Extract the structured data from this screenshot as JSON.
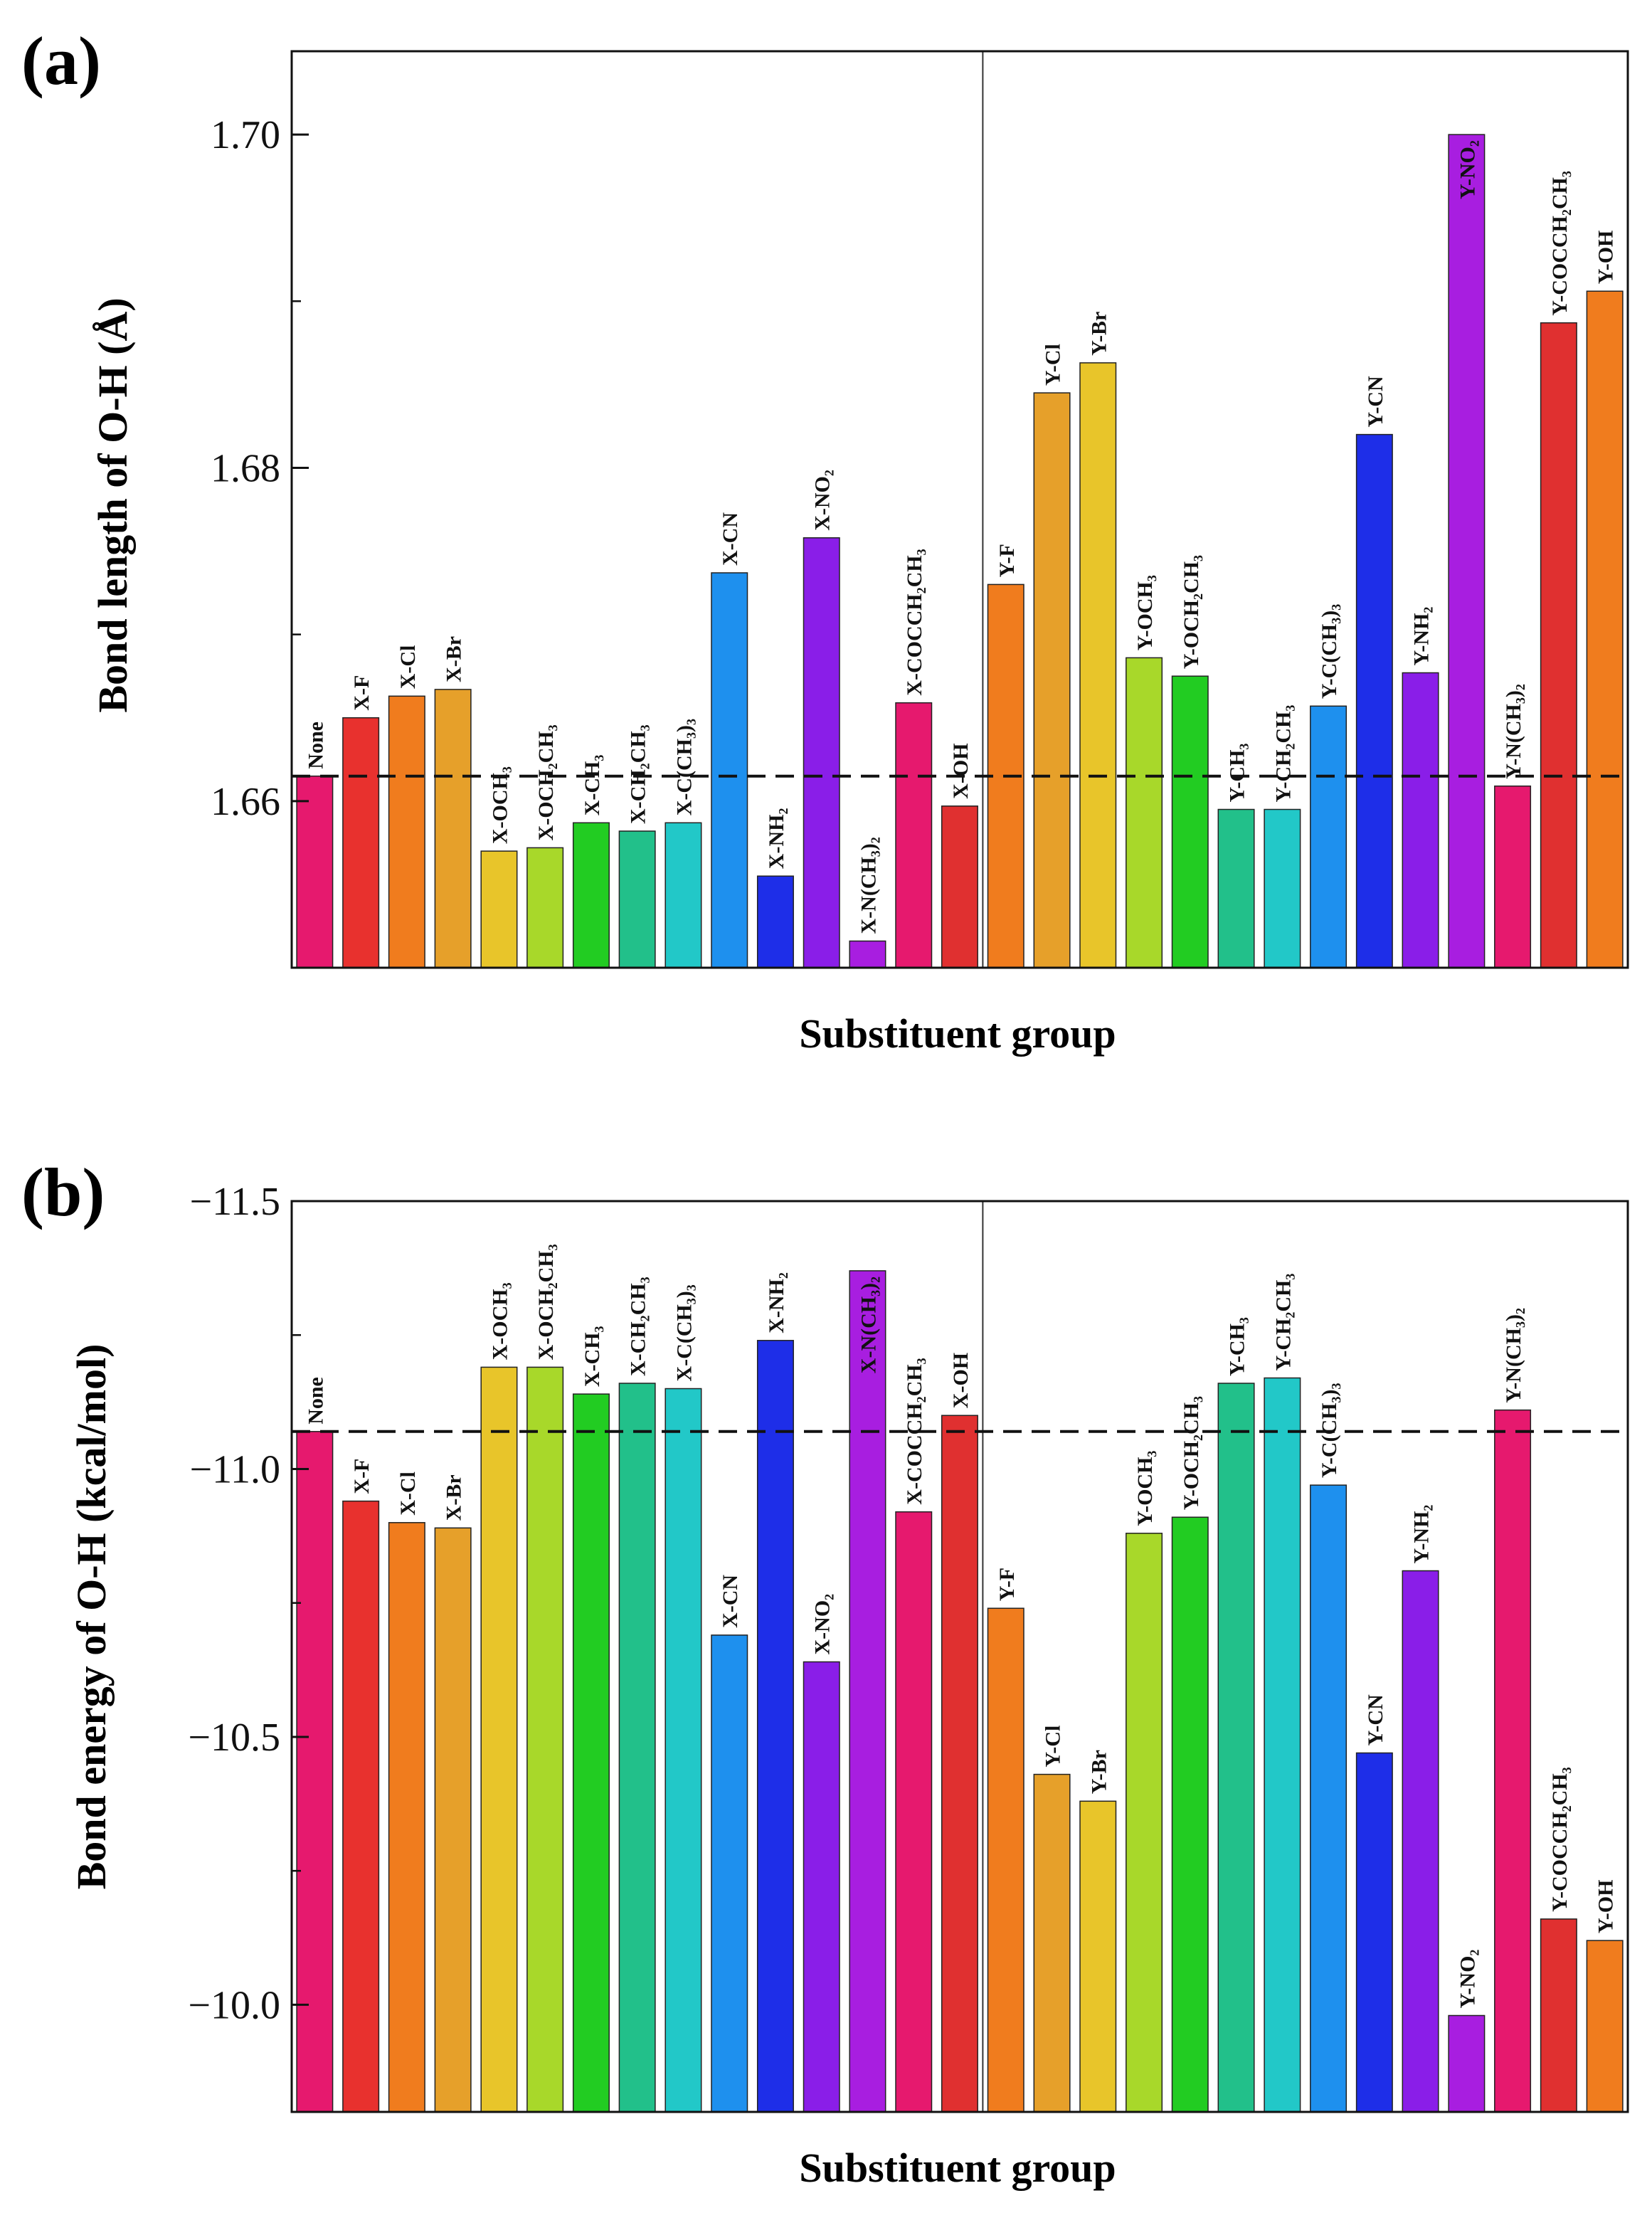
{
  "chart_data": [
    {
      "type": "bar",
      "panel_label": "(a)",
      "title": "",
      "xlabel": "Substituent group",
      "ylabel": "Bond length of O-H (Å)",
      "ylim": [
        1.65,
        1.705
      ],
      "yticks": [
        1.66,
        1.68,
        1.7
      ],
      "ytick_labels": [
        "1.66",
        "1.68",
        "1.70"
      ],
      "reference_line": 1.6615,
      "group_divider_after_index": 15,
      "grid": false,
      "categories": [
        "None",
        "X-F",
        "X-Cl",
        "X-Br",
        "X-OCH3",
        "X-OCH2CH3",
        "X-CH3",
        "X-CH2CH3",
        "X-C(CH3)3",
        "X-CN",
        "X-NH2",
        "X-NO2",
        "X-N(CH3)2",
        "X-COCCH2CH3",
        "X-OH",
        "Y-F",
        "Y-Cl",
        "Y-Br",
        "Y-OCH3",
        "Y-OCH2CH3",
        "Y-CH3",
        "Y-CH2CH3",
        "Y-C(CH3)3",
        "Y-CN",
        "Y-NH2",
        "Y-NO2",
        "Y-N(CH3)2",
        "Y-COCCH2CH3",
        "Y-OH"
      ],
      "values": [
        1.6615,
        1.665,
        1.6663,
        1.6667,
        1.657,
        1.6572,
        1.6587,
        1.6582,
        1.6587,
        1.6737,
        1.6555,
        1.6758,
        1.6516,
        1.6659,
        1.6597,
        1.673,
        1.6845,
        1.6863,
        1.6686,
        1.6675,
        1.6595,
        1.6595,
        1.6657,
        1.682,
        1.6677,
        1.7,
        1.6609,
        1.6887,
        1.6906
      ],
      "colors": [
        "#e6196e",
        "#e8312e",
        "#f07c1e",
        "#e6a02a",
        "#e8c52a",
        "#a8d82a",
        "#22cc22",
        "#22c08a",
        "#22c8c8",
        "#1e90ee",
        "#1e2ee8",
        "#8a1ee8",
        "#a81ee0",
        "#e6196e",
        "#e03030",
        "#f07c1e",
        "#e6a02a",
        "#e8c52a",
        "#a8d82a",
        "#22cc22",
        "#22c08a",
        "#22c8c8",
        "#1e90ee",
        "#1e2ee8",
        "#8a1ee8",
        "#a81ee0",
        "#e6196e",
        "#e03030",
        "#f07c1e"
      ],
      "bar_labels": [
        "None",
        "X-F",
        "X-Cl",
        "X-Br",
        "X-OCH₃",
        "X-OCH₂CH₃",
        "X-CH₃",
        "X-CH₂CH₃",
        "X-C(CH₃)₃",
        "X-CN",
        "X-NH₂",
        "X-NO₂",
        "X-N(CH₃)₂",
        "X-COCCH₂CH₃",
        "X-OH",
        "Y-F",
        "Y-Cl",
        "Y-Br",
        "Y-OCH₃",
        "Y-OCH₂CH₃",
        "Y-CH₃",
        "Y-CH₂CH₃",
        "Y-C(CH₃)₃",
        "Y-CN",
        "Y-NH₂",
        "Y-NO₂",
        "Y-N(CH₃)₂",
        "Y-COCCH₂CH₃",
        "Y-OH"
      ],
      "label_inside": [
        false,
        false,
        false,
        false,
        false,
        false,
        false,
        false,
        false,
        false,
        false,
        false,
        false,
        false,
        false,
        false,
        false,
        false,
        false,
        false,
        false,
        false,
        false,
        false,
        false,
        true,
        false,
        false,
        false
      ]
    },
    {
      "type": "bar",
      "panel_label": "(b)",
      "title": "",
      "xlabel": "Substituent group",
      "ylabel": "Bond energy of O-H (kcal/mol)",
      "ylim": [
        -11.5,
        -9.8
      ],
      "axis_inverted": true,
      "yticks": [
        -11.5,
        -11.0,
        -10.5,
        -10.0
      ],
      "ytick_labels": [
        "−11.5",
        "−11.0",
        "−10.5",
        "−10.0"
      ],
      "reference_line": -11.07,
      "group_divider_after_index": 15,
      "grid": false,
      "categories": [
        "None",
        "X-F",
        "X-Cl",
        "X-Br",
        "X-OCH3",
        "X-OCH2CH3",
        "X-CH3",
        "X-CH2CH3",
        "X-C(CH3)3",
        "X-CN",
        "X-NH2",
        "X-NO2",
        "X-N(CH3)2",
        "X-COCCH2CH3",
        "X-OH",
        "Y-F",
        "Y-Cl",
        "Y-Br",
        "Y-OCH3",
        "Y-OCH2CH3",
        "Y-CH3",
        "Y-CH2CH3",
        "Y-C(CH3)3",
        "Y-CN",
        "Y-NH2",
        "Y-NO2",
        "Y-N(CH3)2",
        "Y-COCCH2CH3",
        "Y-OH"
      ],
      "values": [
        -11.07,
        -10.94,
        -10.9,
        -10.89,
        -11.19,
        -11.19,
        -11.14,
        -11.16,
        -11.15,
        -10.69,
        -11.24,
        -10.64,
        -11.37,
        -10.92,
        -11.1,
        -10.74,
        -10.43,
        -10.38,
        -10.88,
        -10.91,
        -11.16,
        -11.17,
        -10.97,
        -10.47,
        -10.81,
        -9.98,
        -11.11,
        -10.16,
        -10.12
      ],
      "colors": [
        "#e6196e",
        "#e8312e",
        "#f07c1e",
        "#e6a02a",
        "#e8c52a",
        "#a8d82a",
        "#22cc22",
        "#22c08a",
        "#22c8c8",
        "#1e90ee",
        "#1e2ee8",
        "#8a1ee8",
        "#a81ee0",
        "#e6196e",
        "#e03030",
        "#f07c1e",
        "#e6a02a",
        "#e8c52a",
        "#a8d82a",
        "#22cc22",
        "#22c08a",
        "#22c8c8",
        "#1e90ee",
        "#1e2ee8",
        "#8a1ee8",
        "#a81ee0",
        "#e6196e",
        "#e03030",
        "#f07c1e"
      ],
      "bar_labels": [
        "None",
        "X-F",
        "X-Cl",
        "X-Br",
        "X-OCH₃",
        "X-OCH₂CH₃",
        "X-CH₃",
        "X-CH₂CH₃",
        "X-C(CH₃)₃",
        "X-CN",
        "X-NH₂",
        "X-NO₂",
        "X-N(CH₃)₂",
        "X-COCCH₂CH₃",
        "X-OH",
        "Y-F",
        "Y-Cl",
        "Y-Br",
        "Y-OCH₃",
        "Y-OCH₂CH₃",
        "Y-CH₃",
        "Y-CH₂CH₃",
        "Y-C(CH₃)₃",
        "Y-CN",
        "Y-NH₂",
        "Y-NO₂",
        "Y-N(CH₃)₂",
        "Y-COCCH₂CH₃",
        "Y-OH"
      ],
      "label_inside": [
        false,
        false,
        false,
        false,
        false,
        false,
        false,
        false,
        false,
        false,
        false,
        false,
        true,
        false,
        false,
        false,
        false,
        false,
        false,
        false,
        false,
        false,
        false,
        false,
        false,
        false,
        false,
        false,
        false
      ]
    }
  ]
}
